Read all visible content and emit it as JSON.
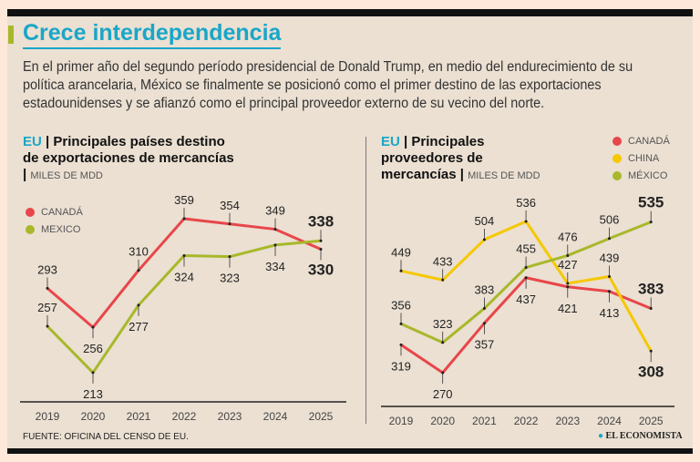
{
  "header": {
    "title": "Crece interdependencia",
    "intro": "En el primer año del segundo período presidencial de Donald Trump, en medio del endurecimiento de su política arancelaria, México se finalmente se posicionó como el primer destino de las exportaciones estadounidenses y se afianzó como el principal proveedor externo de su vecino del norte."
  },
  "footer": {
    "source": "FUENTE: OFICINA DEL CENSO DE EU.",
    "logo": "EL ECONOMISTA"
  },
  "colors": {
    "canada": "#e8464a",
    "china": "#f5c800",
    "mexico": "#a8b82a",
    "accent": "#1aa6c8"
  },
  "chart_data": [
    {
      "type": "line",
      "title_prefix": "EU",
      "title": "Principales países destino de exportaciones de mercancías",
      "unit": "MILES DE MDD",
      "categories": [
        "2019",
        "2020",
        "2021",
        "2022",
        "2023",
        "2024",
        "2025"
      ],
      "series": [
        {
          "name": "CANADÁ",
          "color": "#e8464a",
          "values": [
            293,
            256,
            310,
            359,
            354,
            349,
            330
          ],
          "label_pos": [
            "above",
            "below",
            "above",
            "above",
            "above",
            "above",
            "below"
          ]
        },
        {
          "name": "MEXICO",
          "color": "#a8b82a",
          "values": [
            257,
            213,
            277,
            324,
            323,
            334,
            338
          ],
          "label_pos": [
            "above",
            "below",
            "below",
            "below",
            "below",
            "below",
            "above"
          ]
        }
      ]
    },
    {
      "type": "line",
      "title_prefix": "EU",
      "title": "Principales proveedores de mercancías",
      "unit": "MILES DE MDD",
      "categories": [
        "2019",
        "2020",
        "2021",
        "2022",
        "2023",
        "2024",
        "2025"
      ],
      "series": [
        {
          "name": "CANADÁ",
          "color": "#e8464a",
          "values": [
            319,
            270,
            357,
            437,
            421,
            413,
            383
          ],
          "label_pos": [
            "below",
            "below",
            "below",
            "below",
            "below",
            "below",
            "above"
          ]
        },
        {
          "name": "CHINA",
          "color": "#f5c800",
          "values": [
            449,
            433,
            504,
            536,
            427,
            439,
            308
          ],
          "label_pos": [
            "above",
            "above",
            "above",
            "above",
            "above",
            "above",
            "below"
          ]
        },
        {
          "name": "MÉXICO",
          "color": "#a8b82a",
          "values": [
            356,
            323,
            383,
            455,
            476,
            506,
            535
          ],
          "label_pos": [
            "above",
            "above",
            "above",
            "above",
            "above",
            "above",
            "above"
          ]
        }
      ]
    }
  ]
}
